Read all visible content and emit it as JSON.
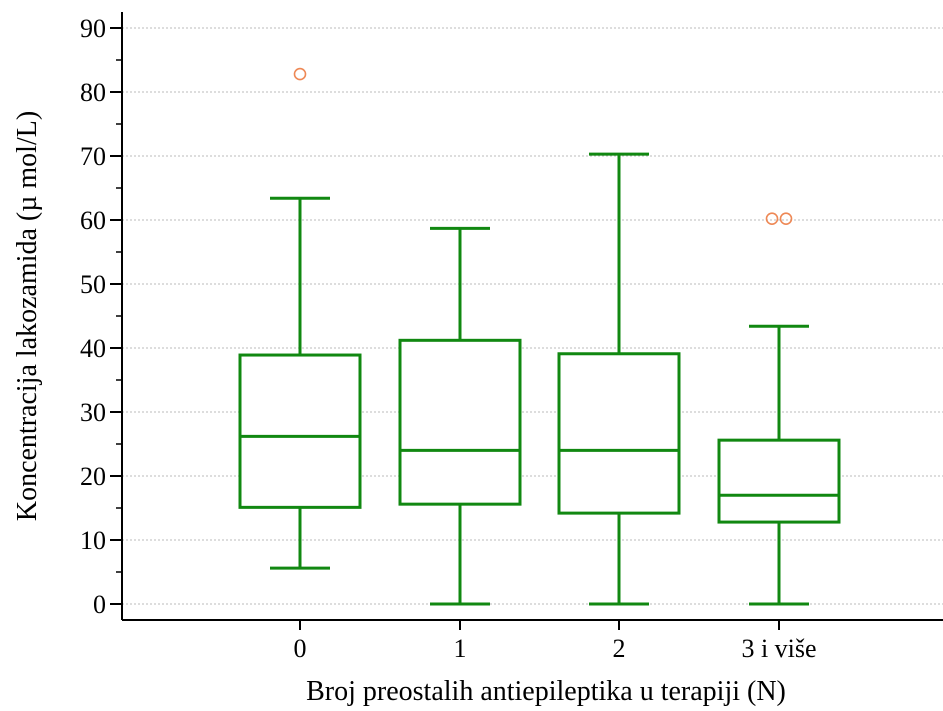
{
  "chart_data": {
    "type": "box",
    "xlabel": "Broj preostalih antiepileptika u terapiji (N)",
    "ylabel": "Koncentracija lakozamida (µ mol/L)",
    "ylim": [
      -2.5,
      92.5
    ],
    "yticks": [
      0,
      10,
      20,
      30,
      40,
      50,
      60,
      70,
      80,
      90
    ],
    "grid": true,
    "categories": [
      "0",
      "1",
      "2",
      "3 i više"
    ],
    "boxes": [
      {
        "category": "0",
        "whisker_low": 5.6,
        "q1": 15.1,
        "median": 26.2,
        "q3": 38.9,
        "whisker_high": 63.4,
        "outliers": [
          82.8
        ]
      },
      {
        "category": "1",
        "whisker_low": 0.0,
        "q1": 15.6,
        "median": 24.0,
        "q3": 41.2,
        "whisker_high": 58.7,
        "outliers": []
      },
      {
        "category": "2",
        "whisker_low": 0.0,
        "q1": 14.2,
        "median": 24.0,
        "q3": 39.1,
        "whisker_high": 70.3,
        "outliers": []
      },
      {
        "category": "3 i više",
        "whisker_low": 0.0,
        "q1": 12.8,
        "median": 17.0,
        "q3": 25.6,
        "whisker_high": 43.4,
        "outliers": [
          60.2,
          60.2
        ]
      }
    ],
    "colors": {
      "box": "#118811",
      "outlier": "#ee8855",
      "grid": "#bbbbbb",
      "axis": "#000000"
    }
  }
}
